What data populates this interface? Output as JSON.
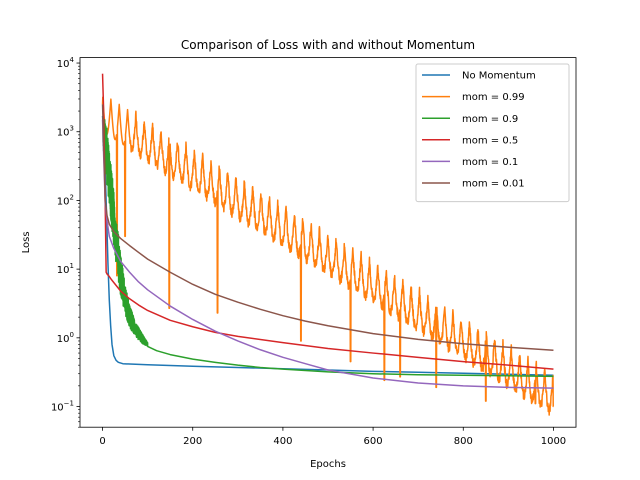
{
  "chart_data": {
    "type": "line",
    "title": "Comparison of Loss with and without Momentum",
    "xlabel": "Epochs",
    "ylabel": "Loss",
    "xlim": [
      -50,
      1050
    ],
    "ylim": [
      0.05,
      12000
    ],
    "yscale": "log",
    "x_ticks": [
      0,
      200,
      400,
      600,
      800,
      1000
    ],
    "y_ticks": [
      {
        "value": 0.1,
        "base": "10",
        "exp": "−1"
      },
      {
        "value": 1,
        "base": "10",
        "exp": "0"
      },
      {
        "value": 10,
        "base": "10",
        "exp": "1"
      },
      {
        "value": 100,
        "base": "10",
        "exp": "2"
      },
      {
        "value": 1000,
        "base": "10",
        "exp": "3"
      },
      {
        "value": 10000,
        "base": "10",
        "exp": "4"
      }
    ],
    "grid": false,
    "legend_position": "top-right",
    "series": [
      {
        "name": "No Momentum",
        "color": "#1f77b4",
        "points": [
          [
            0,
            1700
          ],
          [
            3,
            800
          ],
          [
            6,
            250
          ],
          [
            9,
            60
          ],
          [
            12,
            12
          ],
          [
            15,
            3.5
          ],
          [
            18,
            1.5
          ],
          [
            21,
            0.8
          ],
          [
            25,
            0.55
          ],
          [
            30,
            0.47
          ],
          [
            35,
            0.44
          ],
          [
            45,
            0.42
          ],
          [
            60,
            0.415
          ],
          [
            100,
            0.405
          ],
          [
            200,
            0.385
          ],
          [
            300,
            0.37
          ],
          [
            400,
            0.355
          ],
          [
            500,
            0.34
          ],
          [
            600,
            0.325
          ],
          [
            700,
            0.315
          ],
          [
            800,
            0.305
          ],
          [
            900,
            0.295
          ],
          [
            1000,
            0.285
          ]
        ]
      },
      {
        "name": "mom = 0.99",
        "color": "#ff7f0e",
        "oscillation": {
          "start_log": 3.55,
          "end_log": -0.55,
          "period": 18.5,
          "n_points": 2000,
          "troughs": [
            [
              32,
              8
            ],
            [
              50,
              30
            ],
            [
              148,
              2.7
            ],
            [
              255,
              2.3
            ],
            [
              440,
              0.9
            ],
            [
              550,
              0.45
            ],
            [
              625,
              0.24
            ],
            [
              660,
              0.27
            ],
            [
              740,
              0.19
            ],
            [
              850,
              0.12
            ],
            [
              960,
              0.11
            ],
            [
              1000,
              0.1
            ]
          ]
        }
      },
      {
        "name": "mom = 0.9",
        "color": "#2ca02c",
        "noisy": {
          "start": 1,
          "end": 100,
          "n_points": 700,
          "band": [
            [
              0,
              700,
              2000
            ],
            [
              10,
              150,
              1100
            ],
            [
              20,
              40,
              300
            ],
            [
              30,
              12,
              60
            ],
            [
              40,
              4,
              18
            ],
            [
              50,
              2.2,
              6
            ],
            [
              60,
              1.4,
              3
            ],
            [
              75,
              1.0,
              1.6
            ],
            [
              90,
              0.8,
              1.1
            ],
            [
              100,
              0.75,
              0.85
            ]
          ]
        },
        "points": [
          [
            100,
            0.75
          ],
          [
            120,
            0.65
          ],
          [
            150,
            0.57
          ],
          [
            200,
            0.49
          ],
          [
            250,
            0.44
          ],
          [
            300,
            0.4
          ],
          [
            350,
            0.37
          ],
          [
            400,
            0.35
          ],
          [
            500,
            0.32
          ],
          [
            600,
            0.3
          ],
          [
            700,
            0.29
          ],
          [
            800,
            0.285
          ],
          [
            900,
            0.28
          ],
          [
            1000,
            0.275
          ]
        ]
      },
      {
        "name": "mom = 0.5",
        "color": "#d62728",
        "points": [
          [
            0,
            7000
          ],
          [
            2,
            2500
          ],
          [
            4,
            500
          ],
          [
            6,
            80
          ],
          [
            8,
            9
          ],
          [
            10,
            8.5
          ],
          [
            15,
            7.8
          ],
          [
            20,
            7.0
          ],
          [
            30,
            5.8
          ],
          [
            40,
            4.8
          ],
          [
            60,
            3.7
          ],
          [
            80,
            3.0
          ],
          [
            100,
            2.5
          ],
          [
            150,
            1.8
          ],
          [
            200,
            1.45
          ],
          [
            250,
            1.2
          ],
          [
            300,
            1.05
          ],
          [
            400,
            0.85
          ],
          [
            500,
            0.7
          ],
          [
            600,
            0.6
          ],
          [
            700,
            0.52
          ],
          [
            800,
            0.45
          ],
          [
            900,
            0.4
          ],
          [
            1000,
            0.35
          ]
        ]
      },
      {
        "name": "mom = 0.1",
        "color": "#9467bd",
        "points": [
          [
            0,
            1500
          ],
          [
            3,
            350
          ],
          [
            6,
            90
          ],
          [
            10,
            50
          ],
          [
            15,
            30
          ],
          [
            25,
            20
          ],
          [
            40,
            13
          ],
          [
            60,
            9
          ],
          [
            80,
            6.5
          ],
          [
            100,
            5
          ],
          [
            150,
            2.9
          ],
          [
            200,
            1.85
          ],
          [
            250,
            1.25
          ],
          [
            300,
            0.9
          ],
          [
            350,
            0.67
          ],
          [
            400,
            0.52
          ],
          [
            450,
            0.42
          ],
          [
            500,
            0.34
          ],
          [
            600,
            0.26
          ],
          [
            700,
            0.22
          ],
          [
            800,
            0.2
          ],
          [
            900,
            0.19
          ],
          [
            1000,
            0.185
          ]
        ]
      },
      {
        "name": "mom = 0.01",
        "color": "#8c564b",
        "points": [
          [
            0,
            2500
          ],
          [
            3,
            500
          ],
          [
            6,
            100
          ],
          [
            10,
            60
          ],
          [
            15,
            45
          ],
          [
            25,
            35
          ],
          [
            40,
            28
          ],
          [
            60,
            22
          ],
          [
            80,
            17.5
          ],
          [
            100,
            14
          ],
          [
            150,
            9
          ],
          [
            200,
            6
          ],
          [
            250,
            4.3
          ],
          [
            300,
            3.3
          ],
          [
            350,
            2.6
          ],
          [
            400,
            2.1
          ],
          [
            450,
            1.75
          ],
          [
            500,
            1.5
          ],
          [
            600,
            1.15
          ],
          [
            700,
            0.95
          ],
          [
            800,
            0.82
          ],
          [
            900,
            0.73
          ],
          [
            1000,
            0.66
          ]
        ]
      }
    ]
  }
}
